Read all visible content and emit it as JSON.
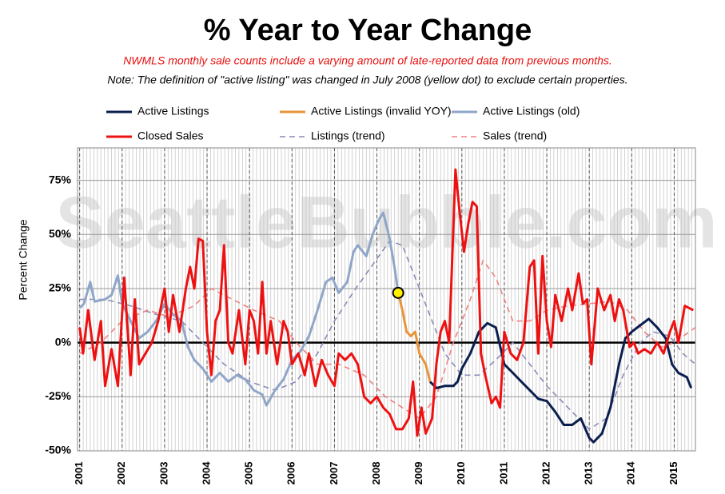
{
  "chart_data": {
    "type": "line",
    "title": "% Year to Year Change",
    "subtitle": "NWMLS monthly sale counts include a varying amount of late-reported  data from previous months.",
    "note": "Note: The definition of \"active listing\" was changed in July 2008 (yellow dot) to exclude certain properties.",
    "ylabel": "Percent Change",
    "watermark": "SeattleBubble.com",
    "xlim": [
      2000.95,
      2015.5
    ],
    "xticks": [
      2001,
      2002,
      2003,
      2004,
      2005,
      2006,
      2007,
      2008,
      2009,
      2010,
      2011,
      2012,
      2013,
      2014,
      2015
    ],
    "minor_grid_per_year": 12,
    "ylim": [
      -50,
      90
    ],
    "yticks": [
      {
        "value": -50,
        "label": "-50%"
      },
      {
        "value": -25,
        "label": "-25%"
      },
      {
        "value": 0,
        "label": "0%"
      },
      {
        "value": 25,
        "label": "25%"
      },
      {
        "value": 50,
        "label": "50%"
      },
      {
        "value": 75,
        "label": "75%"
      }
    ],
    "grid": true,
    "marker": {
      "x": 2008.5,
      "y": 23,
      "color": "#ffee00"
    },
    "series": [
      {
        "name": "Active Listings",
        "color": "#0b1f4f",
        "dash": false,
        "x": [
          2009.25,
          2009.4,
          2009.6,
          2009.8,
          2009.9,
          2010.0,
          2010.2,
          2010.4,
          2010.6,
          2010.8,
          2011.0,
          2011.2,
          2011.4,
          2011.6,
          2011.8,
          2012.0,
          2012.2,
          2012.4,
          2012.6,
          2012.8,
          2013.0,
          2013.1,
          2013.3,
          2013.5,
          2013.7,
          2013.85,
          2014.0,
          2014.2,
          2014.4,
          2014.6,
          2014.8,
          2014.95,
          2015.1,
          2015.3,
          2015.4
        ],
        "values": [
          -18,
          -21,
          -20,
          -20,
          -18,
          -12,
          -5,
          5,
          9,
          7,
          -10,
          -14,
          -18,
          -22,
          -26,
          -27,
          -32,
          -38,
          -38,
          -35,
          -44,
          -46,
          -42,
          -30,
          -10,
          2,
          5,
          8,
          11,
          7,
          2,
          -10,
          -14,
          -16,
          -21
        ]
      },
      {
        "name": "Active Listings (invalid YOY)",
        "color": "#e8943a",
        "dash": false,
        "x": [
          2008.5,
          2008.6,
          2008.7,
          2008.8,
          2008.9,
          2009.0,
          2009.15,
          2009.25
        ],
        "values": [
          23,
          15,
          5,
          3,
          5,
          -5,
          -10,
          -18
        ]
      },
      {
        "name": "Active Listings (old)",
        "color": "#8fa6c8",
        "dash": false,
        "x": [
          2001.0,
          2001.1,
          2001.25,
          2001.35,
          2001.6,
          2001.75,
          2001.9,
          2002.0,
          2002.2,
          2002.4,
          2002.6,
          2002.8,
          2003.0,
          2003.2,
          2003.4,
          2003.55,
          2003.7,
          2003.9,
          2004.1,
          2004.3,
          2004.5,
          2004.7,
          2004.9,
          2005.1,
          2005.3,
          2005.4,
          2005.6,
          2005.8,
          2006.0,
          2006.2,
          2006.4,
          2006.6,
          2006.8,
          2006.95,
          2007.1,
          2007.3,
          2007.45,
          2007.55,
          2007.75,
          2007.9,
          2008.05,
          2008.15,
          2008.3,
          2008.42,
          2008.5
        ],
        "values": [
          16,
          18,
          28,
          19,
          20,
          22,
          31,
          18,
          10,
          2,
          5,
          10,
          18,
          13,
          10,
          -2,
          -8,
          -12,
          -18,
          -14,
          -18,
          -15,
          -17,
          -22,
          -24,
          -29,
          -22,
          -17,
          -8,
          -4,
          3,
          15,
          28,
          30,
          23,
          28,
          42,
          45,
          40,
          50,
          57,
          60,
          48,
          34,
          23
        ]
      },
      {
        "name": "Closed Sales",
        "color": "#ee1111",
        "dash": false,
        "x": [
          2001.0,
          2001.08,
          2001.2,
          2001.35,
          2001.5,
          2001.6,
          2001.75,
          2001.9,
          2002.05,
          2002.2,
          2002.3,
          2002.4,
          2002.55,
          2002.7,
          2002.85,
          2003.0,
          2003.1,
          2003.2,
          2003.35,
          2003.5,
          2003.6,
          2003.7,
          2003.8,
          2003.9,
          2004.0,
          2004.1,
          2004.2,
          2004.3,
          2004.4,
          2004.5,
          2004.6,
          2004.75,
          2004.9,
          2005.0,
          2005.1,
          2005.2,
          2005.3,
          2005.4,
          2005.5,
          2005.65,
          2005.8,
          2005.9,
          2006.0,
          2006.15,
          2006.3,
          2006.4,
          2006.55,
          2006.7,
          2006.85,
          2007.0,
          2007.1,
          2007.25,
          2007.4,
          2007.55,
          2007.7,
          2007.85,
          2008.0,
          2008.15,
          2008.3,
          2008.45,
          2008.6,
          2008.75,
          2008.85,
          2008.95,
          2009.05,
          2009.15,
          2009.3,
          2009.4,
          2009.5,
          2009.6,
          2009.7,
          2009.85,
          2009.95,
          2010.05,
          2010.15,
          2010.25,
          2010.35,
          2010.45,
          2010.55,
          2010.7,
          2010.8,
          2010.9,
          2011.0,
          2011.15,
          2011.3,
          2011.45,
          2011.6,
          2011.7,
          2011.8,
          2011.9,
          2012.0,
          2012.1,
          2012.2,
          2012.35,
          2012.5,
          2012.6,
          2012.75,
          2012.85,
          2012.95,
          2013.05,
          2013.2,
          2013.35,
          2013.5,
          2013.6,
          2013.7,
          2013.8,
          2013.95,
          2014.05,
          2014.15,
          2014.3,
          2014.45,
          2014.6,
          2014.75,
          2014.9,
          2015.0,
          2015.1,
          2015.25,
          2015.35,
          2015.45
        ],
        "values": [
          7,
          -5,
          15,
          -8,
          10,
          -20,
          -3,
          -20,
          30,
          -15,
          20,
          -10,
          -5,
          0,
          10,
          25,
          5,
          22,
          5,
          25,
          35,
          25,
          48,
          47,
          5,
          -15,
          10,
          15,
          45,
          0,
          -5,
          15,
          -10,
          15,
          10,
          -5,
          28,
          -5,
          10,
          -10,
          10,
          5,
          -10,
          -5,
          -15,
          -5,
          -20,
          -8,
          -15,
          -20,
          -5,
          -8,
          -5,
          -10,
          -25,
          -28,
          -25,
          -30,
          -33,
          -40,
          -40,
          -35,
          -18,
          -43,
          -30,
          -42,
          -35,
          -10,
          5,
          10,
          0,
          80,
          60,
          42,
          55,
          65,
          63,
          -5,
          -15,
          -28,
          -25,
          -30,
          5,
          -5,
          -8,
          0,
          35,
          38,
          -5,
          40,
          10,
          -2,
          22,
          10,
          25,
          15,
          32,
          18,
          20,
          -10,
          25,
          15,
          22,
          10,
          20,
          15,
          -2,
          0,
          -5,
          -3,
          -5,
          0,
          -5,
          5,
          10,
          0,
          17,
          16,
          15
        ]
      },
      {
        "name": "Listings (trend)",
        "color": "#8a8ab8",
        "dash": true,
        "x": [
          2001.0,
          2001.6,
          2002.2,
          2002.8,
          2003.4,
          2003.9,
          2004.4,
          2005.0,
          2005.6,
          2006.1,
          2006.6,
          2007.0,
          2007.5,
          2007.9,
          2008.3,
          2008.6,
          2008.9,
          2009.3,
          2009.6,
          2010.0,
          2010.4,
          2010.8,
          2011.2,
          2011.6,
          2012.0,
          2012.5,
          2013.0,
          2013.4,
          2013.8,
          2014.2,
          2014.5,
          2014.9,
          2015.2,
          2015.5
        ],
        "values": [
          20,
          20,
          17,
          13,
          10,
          0,
          -10,
          -18,
          -22,
          -18,
          -5,
          10,
          25,
          36,
          47,
          45,
          30,
          10,
          -5,
          -15,
          -15,
          -8,
          0,
          -10,
          -20,
          -30,
          -40,
          -35,
          -15,
          0,
          5,
          3,
          -5,
          -10
        ]
      },
      {
        "name": "Sales (trend)",
        "color": "#f08080",
        "dash": true,
        "x": [
          2001.0,
          2001.5,
          2002.0,
          2002.6,
          2003.1,
          2003.7,
          2004.1,
          2004.6,
          2005.1,
          2005.7,
          2006.1,
          2006.6,
          2007.1,
          2007.7,
          2008.2,
          2008.6,
          2009.0,
          2009.4,
          2009.8,
          2010.2,
          2010.5,
          2010.8,
          2011.2,
          2011.6,
          2012.0,
          2012.5,
          2013.0,
          2013.5,
          2013.9,
          2014.3,
          2014.7,
          2015.0,
          2015.5
        ],
        "values": [
          -5,
          0,
          10,
          15,
          12,
          17,
          25,
          20,
          15,
          10,
          0,
          -10,
          -10,
          -15,
          -25,
          -30,
          -35,
          -25,
          0,
          20,
          38,
          30,
          10,
          10,
          15,
          17,
          18,
          19,
          15,
          5,
          -2,
          0,
          7
        ]
      }
    ]
  }
}
